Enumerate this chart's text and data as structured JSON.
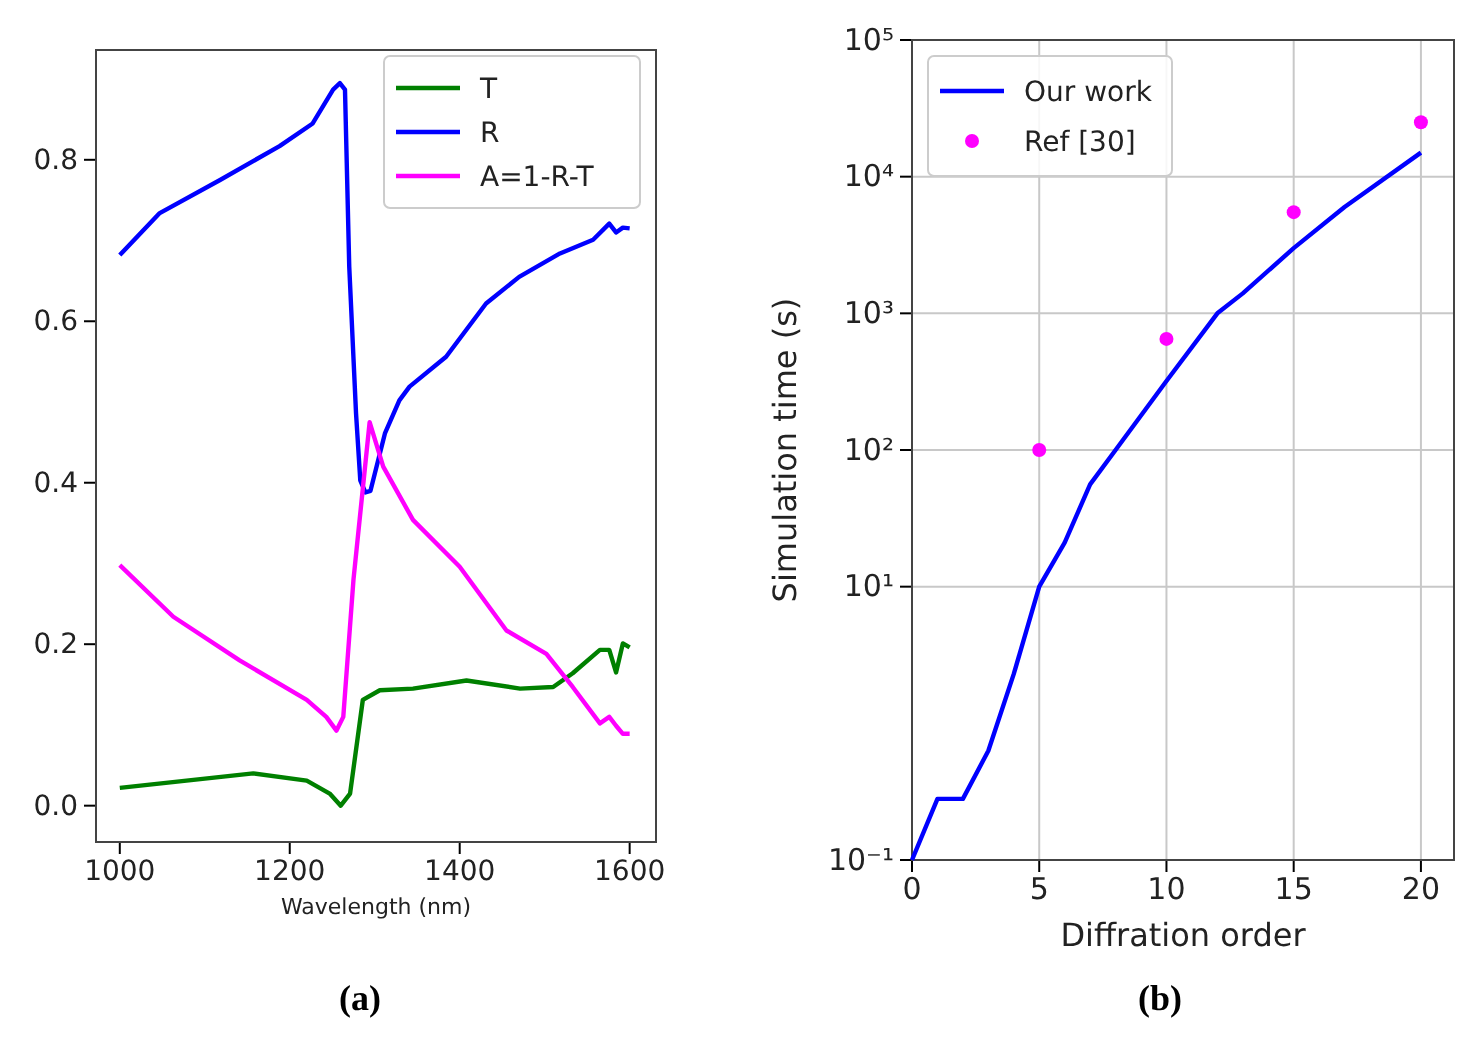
{
  "chart_data": [
    {
      "type": "line",
      "xlabel": "Wavelength (nm)",
      "xlim": [
        972,
        1631
      ],
      "ylim": [
        -0.045,
        0.936
      ],
      "xticks": [
        1000,
        1200,
        1400,
        1600
      ],
      "yticks": [
        {
          "value": 0,
          "label": "0.0"
        },
        0.2,
        0.4,
        0.6,
        0.8
      ],
      "grid": false,
      "legend": "top right",
      "annotations": [
        "(a)"
      ],
      "series": [
        {
          "name": "T",
          "color": "#008000",
          "x": [
            1000,
            1157,
            1220,
            1247,
            1260,
            1271,
            1286,
            1306,
            1345,
            1408,
            1471,
            1510,
            1533,
            1565,
            1576,
            1584,
            1592,
            1600
          ],
          "values": [
            0.022,
            0.04,
            0.031,
            0.015,
            0.0,
            0.015,
            0.131,
            0.143,
            0.145,
            0.155,
            0.145,
            0.147,
            0.164,
            0.193,
            0.193,
            0.165,
            0.201,
            0.196
          ]
        },
        {
          "name": "R",
          "color": "#0000ff",
          "x": [
            1000,
            1047,
            1118,
            1188,
            1227,
            1251,
            1259,
            1265,
            1270,
            1278,
            1283,
            1289,
            1295,
            1312,
            1329,
            1341,
            1384,
            1431,
            1470,
            1518,
            1557,
            1576,
            1584,
            1592,
            1600
          ],
          "values": [
            0.682,
            0.734,
            0.775,
            0.817,
            0.845,
            0.887,
            0.895,
            0.887,
            0.668,
            0.486,
            0.403,
            0.388,
            0.39,
            0.461,
            0.502,
            0.519,
            0.556,
            0.622,
            0.655,
            0.684,
            0.701,
            0.721,
            0.71,
            0.716,
            0.715
          ]
        },
        {
          "name": "A=1-R-T",
          "color": "#ff00ff",
          "x": [
            1000,
            1063,
            1141,
            1220,
            1243,
            1255,
            1263,
            1275,
            1294,
            1310,
            1345,
            1400,
            1455,
            1502,
            1533,
            1565,
            1576,
            1584,
            1592,
            1600
          ],
          "values": [
            0.298,
            0.234,
            0.18,
            0.131,
            0.11,
            0.093,
            0.11,
            0.28,
            0.475,
            0.42,
            0.354,
            0.296,
            0.217,
            0.188,
            0.147,
            0.102,
            0.11,
            0.099,
            0.089,
            0.089
          ]
        }
      ]
    },
    {
      "type": "line",
      "xlabel": "Diffration order",
      "ylabel": "Simulation time (s)",
      "log": "y",
      "xlim": [
        0,
        21.3
      ],
      "ylim": [
        0.1,
        100000
      ],
      "xticks": [
        0,
        5,
        10,
        15,
        20
      ],
      "yticks": [
        {
          "value": 0.1,
          "label": "10⁻¹"
        },
        {
          "value": 10,
          "label": "10¹"
        },
        {
          "value": 100,
          "label": "10²"
        },
        {
          "value": 1000,
          "label": "10³"
        },
        {
          "value": 10000,
          "label": "10⁴"
        },
        {
          "value": 100000,
          "label": "10⁵"
        }
      ],
      "grid": true,
      "legend": "top left",
      "annotations": [
        "(b)"
      ],
      "series": [
        {
          "name": "Our work",
          "type": "line",
          "color": "#0000ff",
          "x": [
            0,
            1,
            2,
            3,
            4,
            5,
            6,
            7,
            8,
            10,
            12,
            13,
            15,
            17,
            20
          ],
          "values": [
            0.1,
            0.28,
            0.28,
            0.63,
            2.3,
            10,
            21,
            56,
            100,
            320,
            1000,
            1400,
            3000,
            6000,
            15000
          ]
        },
        {
          "name": "Ref [30]",
          "type": "scatter",
          "marker": "circle",
          "color": "#ff00ff",
          "x": [
            5,
            10,
            15,
            20
          ],
          "values": [
            100,
            650,
            5500,
            25000
          ]
        }
      ]
    }
  ]
}
